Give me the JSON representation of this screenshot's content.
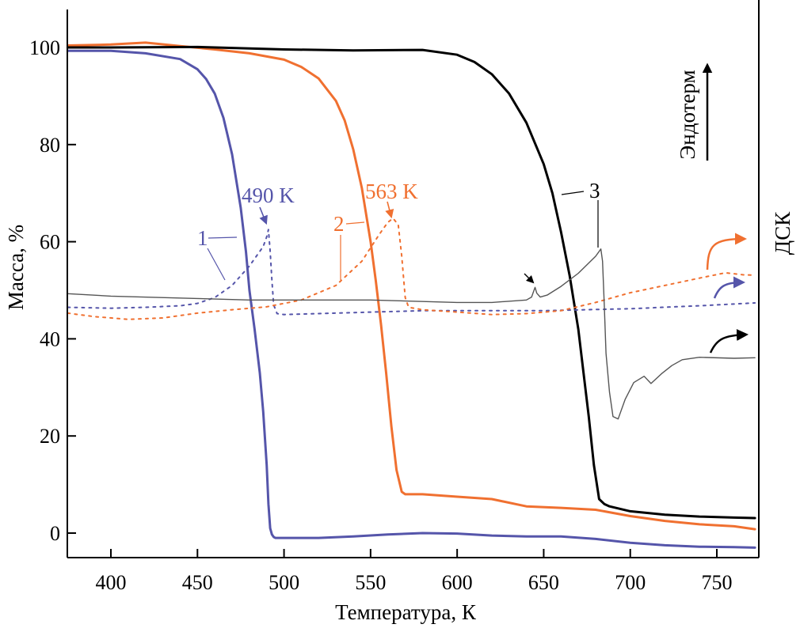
{
  "chart_data": {
    "type": "line",
    "title": "",
    "xlabel": "Температура, К",
    "ylabel": "Масса, %",
    "right_label": "ДСК",
    "endotherm_label": "Эндотерм",
    "xlim": [
      375,
      774
    ],
    "ylim": [
      -5,
      108
    ],
    "xticks": [
      400,
      450,
      500,
      550,
      600,
      650,
      700,
      750
    ],
    "yticks": [
      0,
      20,
      40,
      60,
      80,
      100
    ],
    "grid": false,
    "colors": {
      "s1": "#5555aa",
      "s2": "#f07030",
      "s3": "#000000",
      "dsc3": "#555555"
    },
    "series": [
      {
        "name": "1 (TG)",
        "kind": "tg",
        "color_key": "s1",
        "x": [
          375,
          400,
          420,
          440,
          450,
          455,
          460,
          465,
          470,
          475,
          478,
          480,
          483,
          486,
          488,
          490,
          491,
          492,
          493,
          494,
          495,
          500,
          520,
          540,
          560,
          580,
          600,
          620,
          640,
          660,
          680,
          700,
          720,
          740,
          760,
          772
        ],
        "y": [
          99.3,
          99.3,
          98.8,
          97.6,
          95.5,
          93.5,
          90.5,
          85.5,
          78,
          67,
          58,
          50,
          42,
          33,
          25,
          14,
          6,
          1,
          -0.3,
          -0.8,
          -1,
          -1,
          -1,
          -0.7,
          -0.3,
          0,
          -0.1,
          -0.5,
          -0.7,
          -0.7,
          -1.2,
          -2,
          -2.5,
          -2.8,
          -2.9,
          -3
        ]
      },
      {
        "name": "2 (TG)",
        "kind": "tg",
        "color_key": "s2",
        "x": [
          375,
          400,
          420,
          440,
          460,
          480,
          500,
          510,
          520,
          530,
          535,
          540,
          545,
          550,
          553,
          556,
          559,
          562,
          565,
          568,
          570,
          573,
          580,
          600,
          620,
          640,
          660,
          680,
          700,
          720,
          740,
          760,
          772
        ],
        "y": [
          100.4,
          100.6,
          101,
          100.3,
          99.6,
          98.8,
          97.5,
          96,
          93.6,
          89,
          85,
          79,
          71,
          60,
          52,
          43,
          33,
          22,
          13,
          8.5,
          8,
          8,
          8,
          7.5,
          7,
          5.5,
          5.2,
          4.8,
          3.5,
          2.5,
          1.8,
          1.4,
          0.8
        ]
      },
      {
        "name": "3 (TG)",
        "kind": "tg",
        "color_key": "s3",
        "x": [
          375,
          400,
          450,
          500,
          540,
          580,
          600,
          610,
          620,
          630,
          640,
          650,
          655,
          660,
          665,
          670,
          673,
          676,
          679,
          682,
          685,
          688,
          700,
          720,
          740,
          760,
          772
        ],
        "y": [
          100,
          100,
          100.1,
          99.6,
          99.4,
          99.5,
          98.5,
          97,
          94.5,
          90.5,
          84.5,
          76,
          70,
          62,
          53,
          42,
          33,
          24,
          14,
          7,
          6,
          5.5,
          4.5,
          3.8,
          3.4,
          3.2,
          3.1
        ]
      },
      {
        "name": "1 (DSC)",
        "kind": "dsc",
        "dashed": true,
        "color_key": "s1",
        "x": [
          375,
          400,
          420,
          440,
          450,
          460,
          470,
          480,
          485,
          488,
          490,
          491,
          492,
          493,
          494,
          496,
          500,
          520,
          550,
          580,
          600,
          650,
          700,
          740,
          772
        ],
        "y": [
          46.5,
          46.3,
          46.5,
          46.8,
          47.3,
          48.5,
          51,
          55,
          57.5,
          59,
          61,
          62.5,
          58,
          52,
          47,
          45.2,
          45,
          45.2,
          45.5,
          45.8,
          45.8,
          45.8,
          46.2,
          46.8,
          47.4
        ]
      },
      {
        "name": "2 (DSC)",
        "kind": "dsc",
        "dashed": true,
        "color_key": "s2",
        "x": [
          375,
          390,
          410,
          430,
          450,
          470,
          490,
          510,
          530,
          545,
          555,
          560,
          563,
          566,
          568,
          570,
          572,
          580,
          600,
          620,
          640,
          660,
          680,
          700,
          720,
          740,
          755,
          765,
          772
        ],
        "y": [
          45.3,
          44.6,
          44,
          44.3,
          45.3,
          46,
          46.6,
          48,
          51,
          56,
          61.5,
          64,
          64.8,
          63.5,
          57,
          48.5,
          46.5,
          46,
          45.5,
          45,
          45.2,
          45.8,
          47.5,
          49.5,
          51,
          52.5,
          53.6,
          53.2,
          53.1
        ]
      },
      {
        "name": "3 (DSC)",
        "kind": "dsc",
        "color_key": "dsc3",
        "x": [
          375,
          400,
          450,
          480,
          500,
          550,
          600,
          620,
          640,
          643,
          645,
          646,
          648,
          652,
          660,
          670,
          680,
          683,
          684,
          685,
          686,
          688,
          690,
          693,
          697,
          702,
          708,
          712,
          718,
          724,
          730,
          740,
          760,
          772
        ],
        "y": [
          49.3,
          48.8,
          48.3,
          48,
          48,
          48,
          47.5,
          47.5,
          48,
          48.6,
          50.6,
          49.4,
          48.6,
          49,
          50.8,
          53.5,
          57,
          58.5,
          56,
          47,
          37,
          29,
          24,
          23.5,
          27.5,
          31,
          32.3,
          30.8,
          32.8,
          34.5,
          35.7,
          36.2,
          36,
          36.1
        ]
      }
    ],
    "annotations": [
      {
        "text": "1",
        "series": "1",
        "color_key": "s1"
      },
      {
        "text": "490 K",
        "series": "1",
        "color_key": "s1"
      },
      {
        "text": "2",
        "series": "2",
        "color_key": "s2"
      },
      {
        "text": "563 K",
        "series": "2",
        "color_key": "s2"
      },
      {
        "text": "3",
        "series": "3",
        "color_key": "s3"
      }
    ]
  }
}
